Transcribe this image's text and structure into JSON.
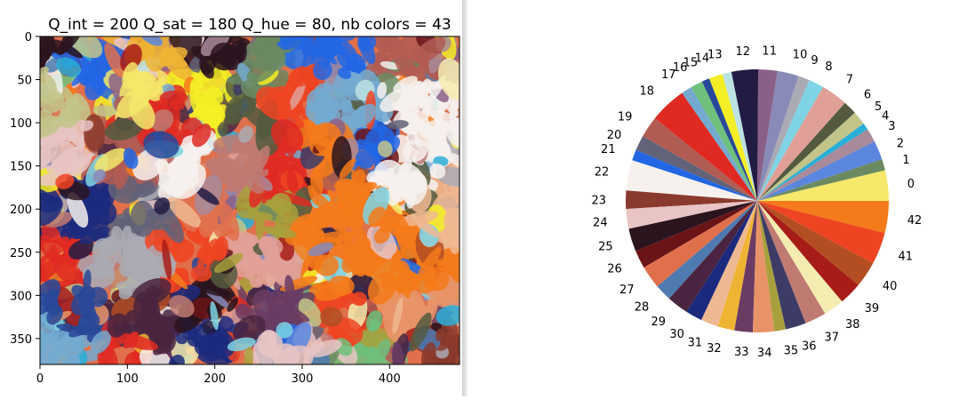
{
  "chart_data": [
    {
      "type": "heatmap",
      "title": "Q_int = 200 Q_sat = 180 Q_hue = 80, nb colors = 43",
      "xlabel": "",
      "ylabel": "",
      "xlim": [
        0,
        480
      ],
      "ylim": [
        380,
        0
      ],
      "x_ticks": [
        "0",
        "100",
        "200",
        "300",
        "400"
      ],
      "y_ticks": [
        "0",
        "50",
        "100",
        "150",
        "200",
        "250",
        "300",
        "350"
      ]
    },
    {
      "type": "pie",
      "title": "",
      "labels": [
        "0",
        "1",
        "2",
        "3",
        "4",
        "5",
        "6",
        "7",
        "8",
        "9",
        "10",
        "11",
        "12",
        "13",
        "14",
        "15",
        "16",
        "17",
        "18",
        "19",
        "20",
        "21",
        "22",
        "23",
        "24",
        "25",
        "26",
        "27",
        "28",
        "29",
        "30",
        "31",
        "32",
        "33",
        "34",
        "35",
        "36",
        "37",
        "38",
        "39",
        "40",
        "41",
        "42"
      ],
      "values": [
        4.0,
        1.5,
        2.5,
        1.8,
        0.9,
        1.8,
        1.8,
        3.5,
        2.0,
        1.5,
        2.8,
        2.5,
        3.5,
        1.2,
        1.8,
        1.0,
        1.6,
        1.4,
        4.8,
        2.8,
        2.0,
        1.4,
        4.0,
        2.4,
        2.6,
        3.0,
        2.4,
        3.0,
        2.2,
        2.8,
        2.2,
        2.3,
        2.2,
        2.4,
        2.8,
        1.5,
        2.7,
        2.8,
        2.7,
        3.0,
        3.4,
        4.2,
        4.2
      ],
      "colors": [
        "#f5e86a",
        "#6b8a62",
        "#5b86de",
        "#a88a9a",
        "#2aaed8",
        "#c2c48a",
        "#545a40",
        "#e0a098",
        "#7ed4e4",
        "#aaaab4",
        "#888ab8",
        "#8a6088",
        "#221c44",
        "#bce2e2",
        "#f4ee26",
        "#284898",
        "#6ec07c",
        "#74aad0",
        "#df2a22",
        "#b15c52",
        "#626278",
        "#2266e4",
        "#f6f1ef",
        "#8a3a2c",
        "#e8c4c4",
        "#2a141e",
        "#6a1418",
        "#e0704c",
        "#4e7ab0",
        "#4a2440",
        "#1c2a7e",
        "#eeb892",
        "#f0b434",
        "#6a3c64",
        "#e89468",
        "#a8a03c",
        "#3c3c66",
        "#bf7a72",
        "#f4ecb0",
        "#a81c18",
        "#b24e22",
        "#ee4422",
        "#f47a1a"
      ]
    }
  ]
}
